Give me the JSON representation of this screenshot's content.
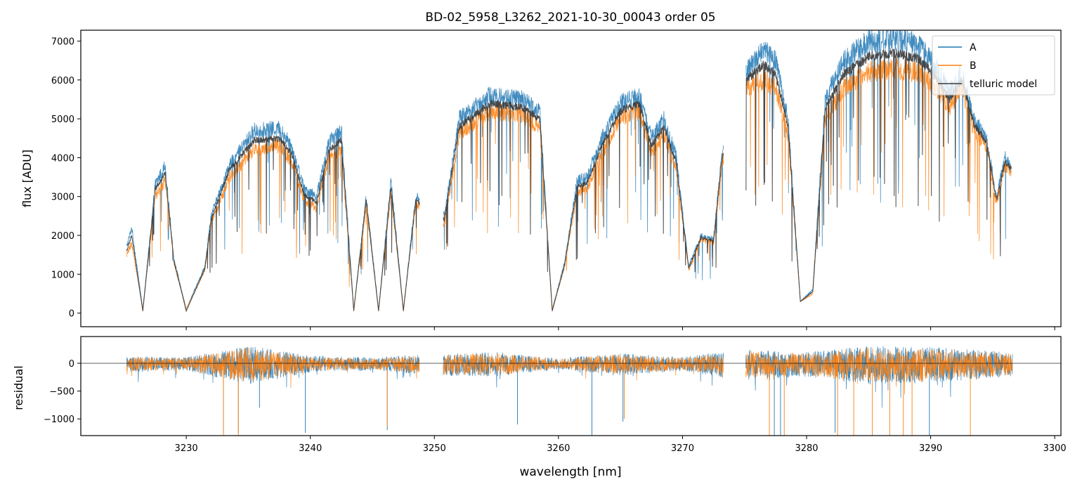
{
  "chart_data": [
    {
      "type": "line",
      "title": "BD-02_5958_L3262_2021-10-30_00043  order 05",
      "xlabel": "",
      "ylabel": "flux [ADU]",
      "xlim": [
        3221.5,
        3300.5
      ],
      "ylim": [
        -350,
        7280
      ],
      "x_ticks": [
        3230,
        3240,
        3250,
        3260,
        3270,
        3280,
        3290,
        3300
      ],
      "x_tick_labels_shown": false,
      "y_ticks": [
        0,
        1000,
        2000,
        3000,
        4000,
        5000,
        6000,
        7000
      ],
      "y_tick_labels": [
        "0",
        "1000",
        "2000",
        "3000",
        "4000",
        "5000",
        "6000",
        "7000"
      ],
      "legend": {
        "placement": "top-right",
        "entries": [
          "A",
          "B",
          "telluric model"
        ]
      },
      "gaps": [
        [
          3248.8,
          3250.7
        ],
        [
          3273.3,
          3275.1
        ]
      ],
      "series": [
        {
          "name": "A",
          "color": "#1f77b4",
          "x": [
            3225.2,
            3225.6,
            3226.5,
            3227.5,
            3228.3,
            3229.0,
            3230.0,
            3231.5,
            3232.0,
            3233.5,
            3235.5,
            3237.5,
            3238.5,
            3239.5,
            3240.5,
            3241.5,
            3242.5,
            3243.5,
            3244.5,
            3245.5,
            3246.5,
            3247.5,
            3248.5,
            3250.8,
            3252.0,
            3254.5,
            3257.0,
            3258.5,
            3259.5,
            3260.5,
            3261.5,
            3262.3,
            3263.5,
            3265.0,
            3266.5,
            3267.5,
            3268.5,
            3269.5,
            3270.5,
            3271.5,
            3272.5,
            3273.2,
            3275.2,
            3276.5,
            3277.5,
            3278.5,
            3279.5,
            3280.5,
            3281.5,
            3283.0,
            3285.0,
            3287.0,
            3289.0,
            3290.5,
            3291.5,
            3292.5,
            3293.5,
            3294.5,
            3295.3,
            3296.0,
            3296.5
          ],
          "y": [
            1700,
            2200,
            100,
            3300,
            3800,
            1400,
            100,
            1200,
            2500,
            3800,
            4700,
            4750,
            4300,
            3200,
            3000,
            4400,
            4700,
            100,
            3000,
            100,
            3400,
            100,
            3000,
            2500,
            5000,
            5600,
            5500,
            5200,
            100,
            1300,
            3400,
            3500,
            4500,
            5400,
            5600,
            4500,
            5000,
            4000,
            1200,
            2000,
            1900,
            4200,
            6200,
            6800,
            6500,
            5000,
            300,
            600,
            5500,
            6500,
            7000,
            7100,
            6900,
            6300,
            5700,
            6200,
            5000,
            4500,
            3000,
            4000,
            3800
          ]
        },
        {
          "name": "B",
          "color": "#ff7f0e",
          "x": [
            3225.2,
            3225.6,
            3226.5,
            3227.5,
            3228.3,
            3229.0,
            3230.0,
            3231.5,
            3232.0,
            3233.5,
            3235.5,
            3237.5,
            3238.5,
            3239.5,
            3240.5,
            3241.5,
            3242.5,
            3243.5,
            3244.5,
            3245.5,
            3246.5,
            3247.5,
            3248.5,
            3250.8,
            3252.0,
            3254.5,
            3257.0,
            3258.5,
            3259.5,
            3260.5,
            3261.5,
            3262.3,
            3263.5,
            3265.0,
            3266.5,
            3267.5,
            3268.5,
            3269.5,
            3270.5,
            3271.5,
            3272.5,
            3273.2,
            3275.2,
            3276.5,
            3277.5,
            3278.5,
            3279.5,
            3280.5,
            3281.5,
            3283.0,
            3285.0,
            3287.0,
            3289.0,
            3290.5,
            3291.5,
            3292.5,
            3293.5,
            3294.5,
            3295.3,
            3296.0,
            3296.5
          ],
          "y": [
            1500,
            1800,
            100,
            3000,
            3400,
            1300,
            100,
            1100,
            2300,
            3500,
            4200,
            4300,
            3900,
            2900,
            2700,
            4000,
            4200,
            100,
            2800,
            100,
            3100,
            100,
            2800,
            2300,
            4600,
            5200,
            5100,
            4800,
            100,
            1200,
            3100,
            3200,
            4100,
            5000,
            5200,
            4100,
            4600,
            3700,
            1100,
            1900,
            1800,
            3900,
            5800,
            6000,
            5800,
            4600,
            300,
            500,
            5000,
            5800,
            6200,
            6300,
            6200,
            5800,
            5300,
            5800,
            4700,
            4300,
            2800,
            3800,
            3600
          ]
        },
        {
          "name": "telluric model",
          "color": "#3a3a3a",
          "x": [
            3225.2,
            3225.6,
            3226.5,
            3227.5,
            3228.3,
            3229.0,
            3230.0,
            3231.5,
            3232.0,
            3233.5,
            3235.5,
            3237.5,
            3238.5,
            3239.5,
            3240.5,
            3241.5,
            3242.5,
            3243.5,
            3244.5,
            3245.5,
            3246.5,
            3247.5,
            3248.5,
            3250.8,
            3252.0,
            3254.5,
            3257.0,
            3258.5,
            3259.5,
            3260.5,
            3261.5,
            3262.3,
            3263.5,
            3265.0,
            3266.5,
            3267.5,
            3268.5,
            3269.5,
            3270.5,
            3271.5,
            3272.5,
            3273.2,
            3275.2,
            3276.5,
            3277.5,
            3278.5,
            3279.5,
            3280.5,
            3281.5,
            3283.0,
            3285.0,
            3287.0,
            3289.0,
            3290.5,
            3291.5,
            3292.5,
            3293.5,
            3294.5,
            3295.3,
            3296.0,
            3296.5
          ],
          "y": [
            1600,
            2000,
            50,
            3200,
            3600,
            1350,
            50,
            1150,
            2400,
            3700,
            4450,
            4500,
            4100,
            3050,
            2850,
            4200,
            4450,
            50,
            2900,
            50,
            3250,
            50,
            2900,
            2400,
            4800,
            5400,
            5300,
            5000,
            50,
            1250,
            3250,
            3350,
            4300,
            5200,
            5400,
            4300,
            4800,
            3850,
            1150,
            1950,
            1850,
            4050,
            6000,
            6400,
            6150,
            4800,
            300,
            550,
            5250,
            6150,
            6600,
            6700,
            6550,
            6050,
            5500,
            6000,
            4850,
            4400,
            2900,
            3900,
            3700
          ]
        }
      ]
    },
    {
      "type": "line",
      "title": "",
      "xlabel": "wavelength [nm]",
      "ylabel": "residual",
      "xlim": [
        3221.5,
        3300.5
      ],
      "ylim": [
        -1300,
        480
      ],
      "x_ticks": [
        3230,
        3240,
        3250,
        3260,
        3270,
        3280,
        3290,
        3300
      ],
      "x_tick_labels": [
        "3230",
        "3240",
        "3250",
        "3260",
        "3270",
        "3280",
        "3290",
        "3300"
      ],
      "y_ticks": [
        -1000,
        -500,
        0
      ],
      "y_tick_labels": [
        "−1000",
        "−500",
        "0"
      ],
      "reference_line": 0,
      "segments": [
        [
          3225.2,
          3248.8
        ],
        [
          3250.7,
          3273.3
        ],
        [
          3275.1,
          3296.6
        ]
      ],
      "series": [
        {
          "name": "A",
          "color": "#1f77b4",
          "amplitude_x": [
            3225,
            3230,
            3235,
            3240,
            3245,
            3250,
            3255,
            3260,
            3265,
            3270,
            3275,
            3280,
            3285,
            3290,
            3296
          ],
          "amplitude": [
            150,
            120,
            350,
            150,
            120,
            200,
            220,
            100,
            200,
            130,
            280,
            220,
            350,
            320,
            230
          ],
          "dips": [
            [
              3233.0,
              -1250
            ],
            [
              3234.2,
              -1250
            ],
            [
              3235.9,
              -800
            ],
            [
              3239.6,
              -1250
            ],
            [
              3246.2,
              -1200
            ],
            [
              3256.7,
              -1100
            ],
            [
              3262.7,
              -1300
            ],
            [
              3265.2,
              -1050
            ],
            [
              3277.4,
              -1300
            ],
            [
              3277.9,
              -1300
            ],
            [
              3282.3,
              -1250
            ],
            [
              3289.9,
              -1300
            ]
          ]
        },
        {
          "name": "B",
          "color": "#ff7f0e",
          "amplitude_x": [
            3225,
            3230,
            3235,
            3240,
            3245,
            3250,
            3255,
            3260,
            3265,
            3270,
            3275,
            3280,
            3285,
            3290,
            3296
          ],
          "amplitude": [
            130,
            110,
            320,
            130,
            100,
            180,
            200,
            90,
            180,
            110,
            250,
            200,
            320,
            290,
            210
          ],
          "dips": [
            [
              3233.0,
              -1300
            ],
            [
              3234.2,
              -1300
            ],
            [
              3246.2,
              -1150
            ],
            [
              3265.3,
              -1000
            ],
            [
              3277.0,
              -1300
            ],
            [
              3278.2,
              -1300
            ],
            [
              3282.5,
              -1300
            ],
            [
              3283.8,
              -1300
            ],
            [
              3285.3,
              -1300
            ],
            [
              3286.7,
              -1300
            ],
            [
              3287.8,
              -1300
            ],
            [
              3288.5,
              -1300
            ],
            [
              3293.2,
              -1300
            ]
          ]
        }
      ]
    }
  ]
}
